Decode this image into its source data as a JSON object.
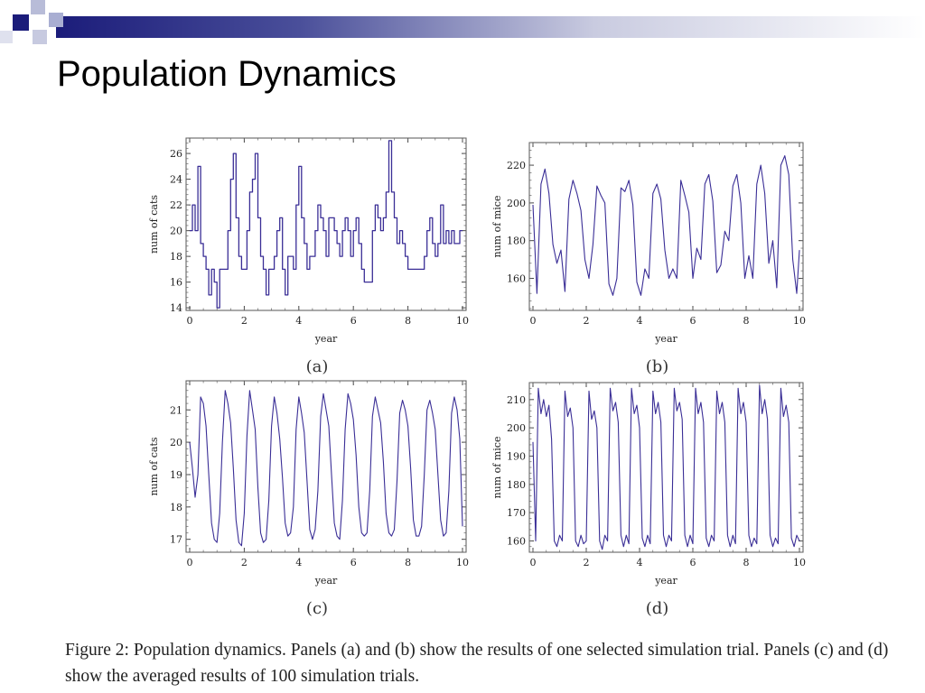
{
  "slide": {
    "title": "Population Dynamics",
    "caption": "Figure 2: Population dynamics. Panels (a) and (b) show the results of one selected simulation trial. Panels (c) and (d) show the averaged results of 100 simulation trials."
  },
  "colors": {
    "series": "#3a2e96",
    "band_dark": "#1b1c7a",
    "band_light": "#ffffff"
  },
  "chart_data": [
    {
      "id": "a",
      "panel_label": "(a)",
      "type": "line",
      "step": true,
      "xlabel": "year",
      "ylabel": "num of cats",
      "xlim": [
        0,
        10
      ],
      "ylim": [
        13.8,
        27.2
      ],
      "xticks": [
        0,
        2,
        4,
        6,
        8,
        10
      ],
      "yticks": [
        14,
        16,
        18,
        20,
        22,
        24,
        26
      ],
      "series": [
        {
          "x": [
            0,
            0.1,
            0.2,
            0.3,
            0.4,
            0.5,
            0.6,
            0.7,
            0.8,
            0.9,
            1.0,
            1.1,
            1.2,
            1.3,
            1.4,
            1.5,
            1.6,
            1.7,
            1.8,
            1.9,
            2.0,
            2.1,
            2.2,
            2.3,
            2.4,
            2.5,
            2.6,
            2.7,
            2.8,
            2.9,
            3.0,
            3.1,
            3.2,
            3.3,
            3.4,
            3.5,
            3.6,
            3.7,
            3.8,
            3.9,
            4.0,
            4.1,
            4.2,
            4.3,
            4.4,
            4.5,
            4.6,
            4.7,
            4.8,
            4.9,
            5.0,
            5.1,
            5.2,
            5.3,
            5.4,
            5.5,
            5.6,
            5.7,
            5.8,
            5.9,
            6.0,
            6.1,
            6.2,
            6.3,
            6.4,
            6.5,
            6.6,
            6.7,
            6.8,
            6.9,
            7.0,
            7.1,
            7.2,
            7.3,
            7.4,
            7.5,
            7.6,
            7.7,
            7.8,
            7.9,
            8.0,
            8.1,
            8.2,
            8.3,
            8.4,
            8.5,
            8.6,
            8.7,
            8.8,
            8.9,
            9.0,
            9.1,
            9.2,
            9.3,
            9.4,
            9.5,
            9.6,
            9.7,
            9.8,
            9.9,
            10.0
          ],
          "y": [
            20,
            22,
            20,
            25,
            19,
            18,
            17,
            15,
            17,
            16,
            14,
            17,
            17,
            17,
            20,
            24,
            26,
            21,
            18,
            17,
            17,
            20,
            23,
            24,
            26,
            21,
            18,
            17,
            15,
            17,
            17,
            18,
            20,
            21,
            17,
            15,
            18,
            18,
            17,
            22,
            25,
            21,
            19,
            17,
            18,
            18,
            20,
            22,
            21,
            20,
            18,
            21,
            21,
            20,
            19,
            18,
            20,
            21,
            20,
            18,
            20,
            21,
            19,
            17,
            16,
            16,
            16,
            20,
            22,
            21,
            20,
            21,
            23,
            27,
            23,
            21,
            19,
            20,
            19,
            18,
            17,
            17,
            17,
            17,
            17,
            17,
            18,
            20,
            21,
            19,
            18,
            19,
            22,
            19,
            20,
            19,
            20,
            19,
            19,
            20,
            20
          ]
        }
      ]
    },
    {
      "id": "b",
      "panel_label": "(b)",
      "type": "line",
      "xlabel": "year",
      "ylabel": "num of mice",
      "xlim": [
        0,
        10
      ],
      "ylim": [
        143,
        232
      ],
      "xticks": [
        0,
        2,
        4,
        6,
        8,
        10
      ],
      "yticks": [
        160,
        180,
        200,
        220
      ],
      "series": [
        {
          "x": [
            0,
            0.15,
            0.3,
            0.45,
            0.6,
            0.75,
            0.9,
            1.05,
            1.2,
            1.35,
            1.5,
            1.65,
            1.8,
            1.95,
            2.1,
            2.25,
            2.4,
            2.55,
            2.7,
            2.85,
            3.0,
            3.15,
            3.3,
            3.45,
            3.6,
            3.75,
            3.9,
            4.05,
            4.2,
            4.35,
            4.5,
            4.65,
            4.8,
            4.95,
            5.1,
            5.25,
            5.4,
            5.55,
            5.7,
            5.85,
            6.0,
            6.15,
            6.3,
            6.45,
            6.6,
            6.75,
            6.9,
            7.05,
            7.2,
            7.35,
            7.5,
            7.65,
            7.8,
            7.95,
            8.1,
            8.25,
            8.4,
            8.55,
            8.7,
            8.85,
            9.0,
            9.15,
            9.3,
            9.45,
            9.6,
            9.75,
            9.9,
            10.0
          ],
          "y": [
            199,
            152,
            210,
            218,
            205,
            178,
            168,
            175,
            153,
            202,
            212,
            205,
            196,
            170,
            160,
            178,
            209,
            204,
            200,
            157,
            151,
            160,
            208,
            206,
            212,
            199,
            158,
            151,
            165,
            160,
            205,
            210,
            202,
            175,
            160,
            165,
            160,
            212,
            204,
            195,
            160,
            176,
            170,
            210,
            215,
            201,
            163,
            167,
            185,
            180,
            209,
            215,
            200,
            160,
            172,
            160,
            210,
            220,
            205,
            168,
            180,
            155,
            220,
            225,
            215,
            170,
            152,
            175
          ]
        }
      ]
    },
    {
      "id": "c",
      "panel_label": "(c)",
      "type": "line",
      "xlabel": "year",
      "ylabel": "num of cats",
      "xlim": [
        0,
        10
      ],
      "ylim": [
        16.6,
        21.9
      ],
      "xticks": [
        0,
        2,
        4,
        6,
        8,
        10
      ],
      "yticks": [
        17,
        18,
        19,
        20,
        21
      ],
      "series": [
        {
          "x": [
            0,
            0.1,
            0.2,
            0.3,
            0.4,
            0.5,
            0.6,
            0.7,
            0.8,
            0.9,
            1.0,
            1.1,
            1.2,
            1.3,
            1.4,
            1.5,
            1.6,
            1.7,
            1.8,
            1.9,
            2.0,
            2.1,
            2.2,
            2.3,
            2.4,
            2.5,
            2.6,
            2.7,
            2.8,
            2.9,
            3.0,
            3.1,
            3.2,
            3.3,
            3.4,
            3.5,
            3.6,
            3.7,
            3.8,
            3.9,
            4.0,
            4.1,
            4.2,
            4.3,
            4.4,
            4.5,
            4.6,
            4.7,
            4.8,
            4.9,
            5.0,
            5.1,
            5.2,
            5.3,
            5.4,
            5.5,
            5.6,
            5.7,
            5.8,
            5.9,
            6.0,
            6.1,
            6.2,
            6.3,
            6.4,
            6.5,
            6.6,
            6.7,
            6.8,
            6.9,
            7.0,
            7.1,
            7.2,
            7.3,
            7.4,
            7.5,
            7.6,
            7.7,
            7.8,
            7.9,
            8.0,
            8.1,
            8.2,
            8.3,
            8.4,
            8.5,
            8.6,
            8.7,
            8.8,
            8.9,
            9.0,
            9.1,
            9.2,
            9.3,
            9.4,
            9.5,
            9.6,
            9.7,
            9.8,
            9.9,
            10.0
          ],
          "y": [
            20.0,
            19.2,
            18.3,
            19.0,
            21.4,
            21.2,
            20.5,
            19.0,
            17.5,
            17.0,
            16.9,
            17.8,
            20.0,
            21.6,
            21.2,
            20.6,
            19.2,
            17.6,
            16.9,
            16.8,
            17.8,
            20.2,
            21.6,
            21.0,
            20.4,
            18.6,
            17.2,
            16.9,
            17.0,
            18.2,
            20.5,
            21.4,
            20.9,
            20.1,
            18.9,
            17.5,
            17.1,
            17.2,
            18.0,
            20.4,
            21.4,
            20.9,
            20.3,
            18.8,
            17.3,
            17.0,
            17.3,
            18.5,
            20.8,
            21.5,
            21.0,
            20.5,
            19.0,
            17.5,
            17.1,
            17.0,
            18.2,
            20.4,
            21.5,
            21.2,
            20.7,
            19.6,
            18.0,
            17.2,
            17.1,
            17.2,
            18.5,
            20.8,
            21.4,
            21.0,
            20.6,
            19.4,
            17.8,
            17.2,
            17.1,
            17.3,
            18.8,
            20.9,
            21.3,
            21.0,
            20.5,
            19.2,
            17.6,
            17.1,
            17.1,
            17.4,
            19.0,
            21.0,
            21.3,
            20.9,
            20.4,
            19.0,
            17.6,
            17.1,
            17.2,
            18.5,
            20.9,
            21.4,
            21.0,
            20.1,
            17.4
          ]
        }
      ]
    },
    {
      "id": "d",
      "panel_label": "(d)",
      "type": "line",
      "xlabel": "year",
      "ylabel": "num of mice",
      "xlim": [
        0,
        10
      ],
      "ylim": [
        156,
        216
      ],
      "xticks": [
        0,
        2,
        4,
        6,
        8,
        10
      ],
      "yticks": [
        160,
        170,
        180,
        190,
        200,
        210
      ],
      "series": [
        {
          "x": [
            0,
            0.1,
            0.2,
            0.3,
            0.4,
            0.5,
            0.6,
            0.7,
            0.8,
            0.9,
            1.0,
            1.1,
            1.2,
            1.3,
            1.4,
            1.5,
            1.6,
            1.7,
            1.8,
            1.9,
            2.0,
            2.1,
            2.2,
            2.3,
            2.4,
            2.5,
            2.6,
            2.7,
            2.8,
            2.9,
            3.0,
            3.1,
            3.2,
            3.3,
            3.4,
            3.5,
            3.6,
            3.7,
            3.8,
            3.9,
            4.0,
            4.1,
            4.2,
            4.3,
            4.4,
            4.5,
            4.6,
            4.7,
            4.8,
            4.9,
            5.0,
            5.1,
            5.2,
            5.3,
            5.4,
            5.5,
            5.6,
            5.7,
            5.8,
            5.9,
            6.0,
            6.1,
            6.2,
            6.3,
            6.4,
            6.5,
            6.6,
            6.7,
            6.8,
            6.9,
            7.0,
            7.1,
            7.2,
            7.3,
            7.4,
            7.5,
            7.6,
            7.7,
            7.8,
            7.9,
            8.0,
            8.1,
            8.2,
            8.3,
            8.4,
            8.5,
            8.6,
            8.7,
            8.8,
            8.9,
            9.0,
            9.1,
            9.2,
            9.3,
            9.4,
            9.5,
            9.6,
            9.7,
            9.8,
            9.9,
            10.0
          ],
          "y": [
            195,
            160,
            214,
            205,
            210,
            204,
            208,
            196,
            160,
            158,
            162,
            160,
            213,
            204,
            207,
            200,
            160,
            158,
            162,
            159,
            160,
            213,
            203,
            206,
            200,
            160,
            157,
            162,
            160,
            214,
            206,
            209,
            202,
            162,
            158,
            162,
            159,
            214,
            205,
            208,
            200,
            161,
            158,
            162,
            159,
            213,
            205,
            209,
            202,
            162,
            158,
            162,
            160,
            214,
            206,
            209,
            203,
            162,
            158,
            162,
            159,
            214,
            205,
            209,
            202,
            161,
            158,
            162,
            160,
            213,
            205,
            209,
            202,
            162,
            158,
            162,
            159,
            214,
            205,
            209,
            202,
            162,
            158,
            161,
            159,
            215,
            205,
            210,
            203,
            162,
            158,
            161,
            159,
            214,
            204,
            208,
            202,
            161,
            158,
            162,
            160
          ]
        }
      ]
    }
  ]
}
